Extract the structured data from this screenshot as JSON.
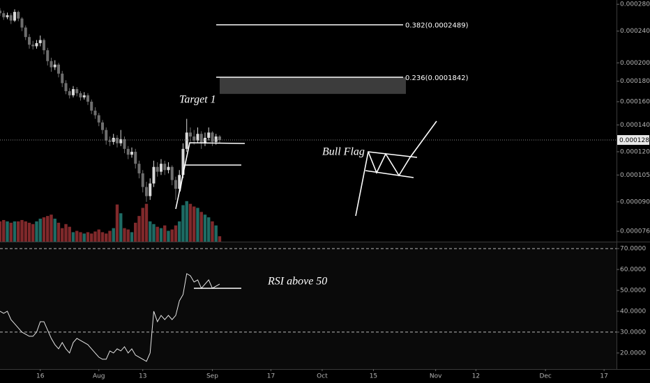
{
  "chart_data": [
    {
      "type": "candlestick",
      "x": [
        0,
        1,
        2,
        3,
        4,
        5,
        6,
        7,
        8,
        9,
        10,
        11,
        12,
        13,
        14,
        15,
        16,
        17,
        18,
        19,
        20,
        21,
        22,
        23,
        24,
        25,
        26,
        27,
        28,
        29,
        30,
        31,
        32,
        33,
        34,
        35,
        36,
        37,
        38,
        39,
        40,
        41,
        42,
        43,
        44,
        45,
        46,
        47,
        48,
        49,
        50,
        51,
        52,
        53,
        54,
        55,
        56,
        57,
        58,
        59,
        60
      ],
      "open": [
        0.00027,
        0.000266,
        0.00026,
        0.000263,
        0.000255,
        0.000268,
        0.000258,
        0.000245,
        0.000232,
        0.000222,
        0.00022,
        0.000224,
        0.000228,
        0.000215,
        0.000202,
        0.000195,
        0.000198,
        0.000188,
        0.000178,
        0.00017,
        0.000166,
        0.000172,
        0.000168,
        0.000164,
        0.000166,
        0.00016,
        0.000152,
        0.000148,
        0.000142,
        0.000136,
        0.000128,
        0.000127,
        0.00013,
        0.000126,
        0.000129,
        0.000122,
        0.000118,
        0.00012,
        0.000112,
        0.000106,
        9.8e-05,
        9.3e-05,
        0.0001,
        0.00011,
        0.000107,
        0.000112,
        0.000108,
        0.00011,
        0.000102,
        9.7e-05,
        0.000105,
        0.000122,
        0.000134,
        0.000131,
        0.000128,
        0.000133,
        0.000126,
        0.00013,
        0.000134,
        0.000127,
        0.000131
      ],
      "high": [
        0.000274,
        0.00027,
        0.000267,
        0.000266,
        0.000272,
        0.00027,
        0.00026,
        0.000248,
        0.000236,
        0.000227,
        0.000228,
        0.000234,
        0.00023,
        0.000218,
        0.000206,
        0.000203,
        0.0002,
        0.000191,
        0.000181,
        0.000173,
        0.000175,
        0.000174,
        0.00017,
        0.000169,
        0.000168,
        0.000162,
        0.000155,
        0.00015,
        0.000144,
        0.000138,
        0.000131,
        0.000133,
        0.000132,
        0.000136,
        0.000131,
        0.000124,
        0.000123,
        0.000122,
        0.000114,
        0.000108,
        0.000101,
        0.000103,
        0.000114,
        0.000113,
        0.000115,
        0.000114,
        0.000113,
        0.000111,
        0.000104,
        0.000108,
        0.000126,
        0.000145,
        0.000138,
        0.000136,
        0.000138,
        0.000135,
        0.000134,
        0.000138,
        0.000135,
        0.000133,
        0.000132
      ],
      "low": [
        0.000262,
        0.000256,
        0.000257,
        0.00025,
        0.000253,
        0.000254,
        0.00024,
        0.000228,
        0.000217,
        0.000216,
        0.000217,
        0.00022,
        0.00021,
        0.000197,
        0.00019,
        0.000192,
        0.000184,
        0.000174,
        0.000167,
        0.000163,
        0.000164,
        0.000165,
        0.000161,
        0.000162,
        0.000157,
        0.000149,
        0.000145,
        0.000139,
        0.000133,
        0.000125,
        0.000124,
        0.000125,
        0.000123,
        0.000124,
        0.000119,
        0.000115,
        0.000116,
        0.000109,
        0.000103,
        9.5e-05,
        9e-05,
        9.1e-05,
        9.8e-05,
        0.000104,
        0.000105,
        0.000105,
        0.000106,
        9.9e-05,
        9.1e-05,
        9.5e-05,
        0.000103,
        0.00012,
        0.000127,
        0.000125,
        0.000126,
        0.000122,
        0.000124,
        0.000128,
        0.000124,
        0.000125,
        0.000126
      ],
      "close": [
        0.000266,
        0.00026,
        0.000263,
        0.000255,
        0.000268,
        0.000258,
        0.000245,
        0.000232,
        0.000222,
        0.00022,
        0.000224,
        0.000228,
        0.000215,
        0.000202,
        0.000195,
        0.000198,
        0.000188,
        0.000178,
        0.00017,
        0.000166,
        0.000172,
        0.000168,
        0.000164,
        0.000166,
        0.00016,
        0.000152,
        0.000148,
        0.000142,
        0.000136,
        0.000128,
        0.000127,
        0.00013,
        0.000126,
        0.000129,
        0.000122,
        0.000118,
        0.00012,
        0.000112,
        0.000106,
        9.8e-05,
        9.3e-05,
        0.0001,
        0.00011,
        0.000107,
        0.000112,
        0.000108,
        0.00011,
        0.000102,
        9.7e-05,
        0.000105,
        0.000122,
        0.000134,
        0.000131,
        0.000128,
        0.000133,
        0.000126,
        0.00013,
        0.000134,
        0.000127,
        0.000131,
        0.0001284
      ],
      "up_color": "#d9d9d9",
      "down_color": "#6e6e6e",
      "log_scale": true,
      "ylim": [
        7.16e-05,
        0.000287
      ],
      "yticks": [
        {
          "value": 0.00028,
          "label": "0.0002800"
        },
        {
          "value": 0.00024,
          "label": "0.0002400"
        },
        {
          "value": 0.0002,
          "label": "0.0002000"
        },
        {
          "value": 0.00018,
          "label": "0.0001800"
        },
        {
          "value": 0.00016,
          "label": "0.0001600"
        },
        {
          "value": 0.00014,
          "label": "0.0001400"
        },
        {
          "value": 0.00012,
          "label": "0.0001200"
        },
        {
          "value": 0.000105,
          "label": "0.0001050"
        },
        {
          "value": 9e-05,
          "label": "0.0000900"
        },
        {
          "value": 7.6e-05,
          "label": "0.0000760"
        }
      ],
      "xlim": [
        0,
        168.4
      ],
      "xticks": [
        {
          "value": 11,
          "label": "16"
        },
        {
          "value": 27,
          "label": "Aug"
        },
        {
          "value": 39,
          "label": "13"
        },
        {
          "value": 58,
          "label": "Sep"
        },
        {
          "value": 74,
          "label": "17"
        },
        {
          "value": 88,
          "label": "Oct"
        },
        {
          "value": 102,
          "label": "15"
        },
        {
          "value": 119,
          "label": "Nov"
        },
        {
          "value": 130,
          "label": "12"
        },
        {
          "value": 149,
          "label": "Dec"
        },
        {
          "value": 165,
          "label": "17"
        }
      ],
      "last_price": {
        "value": 0.0001284,
        "label": "0.0001284"
      },
      "fib_levels": [
        {
          "value": 0.0002489,
          "label": "0.382(0.0002489)"
        },
        {
          "value": 0.0001842,
          "label": "0.236(0.0001842)"
        }
      ]
    },
    {
      "type": "bar",
      "values": [
        30,
        32,
        30,
        28,
        30,
        30,
        32,
        30,
        28,
        26,
        30,
        34,
        36,
        38,
        40,
        34,
        28,
        20,
        26,
        22,
        14,
        16,
        14,
        12,
        14,
        12,
        15,
        18,
        14,
        12,
        16,
        20,
        55,
        42,
        20,
        18,
        14,
        28,
        38,
        50,
        56,
        30,
        26,
        22,
        20,
        24,
        16,
        18,
        24,
        30,
        54,
        60,
        56,
        52,
        50,
        44,
        40,
        36,
        30,
        24,
        8
      ],
      "up_color": "#1e6b64",
      "down_color": "#80292b",
      "ylim": [
        0,
        100
      ]
    },
    {
      "type": "line",
      "values": [
        40,
        39,
        40,
        36,
        34,
        32,
        30,
        29,
        28,
        28,
        30,
        35,
        35,
        31,
        27,
        24,
        22,
        25,
        22,
        20,
        25,
        27,
        26,
        25,
        24,
        22,
        20,
        18,
        17,
        17,
        21,
        20,
        22,
        21,
        23,
        20,
        22,
        19,
        18,
        17,
        16,
        20,
        40,
        35,
        38,
        36,
        38,
        36,
        38,
        45,
        48,
        58,
        57,
        54,
        55,
        51,
        53,
        55,
        51,
        52,
        53
      ],
      "color": "#e6e6e6",
      "ylim": [
        12.3,
        73
      ],
      "yticks": [
        {
          "value": 70,
          "label": "70.0000"
        },
        {
          "value": 60,
          "label": "60.0000"
        },
        {
          "value": 50,
          "label": "50.0000"
        },
        {
          "value": 40,
          "label": "40.0000"
        },
        {
          "value": 30,
          "label": "30.0000"
        },
        {
          "value": 20,
          "label": "20.0000"
        }
      ],
      "levels": [
        70,
        30
      ]
    }
  ],
  "annotations": {
    "target": "Target 1",
    "bull_flag": "Bull Flag",
    "rsi_note": "RSI above 50"
  }
}
